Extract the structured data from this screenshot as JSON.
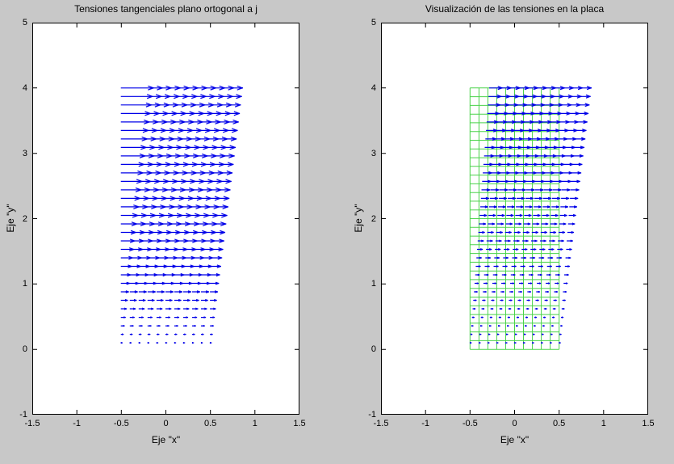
{
  "figure": {
    "background_color": "#C8C8C8",
    "plot_background_color": "#FFFFFF",
    "axis_color": "#000000"
  },
  "chart_data": [
    {
      "type": "quiver",
      "title": "Tensiones tangenciales plano ortogonal a j",
      "xlabel": "Eje \"x\"",
      "ylabel": "Eje \"y\"",
      "xlim": [
        -1.5,
        1.5
      ],
      "ylim": [
        -1,
        5
      ],
      "x_tick_labels": [
        "-1.5",
        "-1",
        "-0.5",
        "0",
        "0.5",
        "1",
        "1.5"
      ],
      "y_tick_labels": [
        "-1",
        "0",
        "1",
        "2",
        "3",
        "4",
        "5"
      ],
      "grid": false,
      "quiver": {
        "color": "#0000E8",
        "x_start": -0.5,
        "x_step": 0.1,
        "cols": 11,
        "y_start": 0.1,
        "y_end": 4.0,
        "rows": 31,
        "dx_per_y": 0.09,
        "dy": 0,
        "x_shift_per_y": 0,
        "direction": "+x",
        "magnitude_rule": "arrow length proportional to y"
      },
      "mesh": null
    },
    {
      "type": "quiver",
      "title": "Visualización de las tensiones en la placa",
      "xlabel": "Eje \"x\"",
      "ylabel": "Eje \"y\"",
      "xlim": [
        -1.5,
        1.5
      ],
      "ylim": [
        -1,
        5
      ],
      "x_tick_labels": [
        "-1.5",
        "-1",
        "-0.5",
        "0",
        "0.5",
        "1",
        "1.5"
      ],
      "y_tick_labels": [
        "-1",
        "0",
        "1",
        "2",
        "3",
        "4",
        "5"
      ],
      "grid": false,
      "quiver": {
        "color": "#0000E8",
        "x_start": -0.5,
        "x_step": 0.1,
        "cols": 11,
        "y_start": 0.1,
        "y_end": 4.0,
        "rows": 31,
        "dx_per_y": 0.035,
        "dy": 0,
        "x_shift_per_y": 0.055,
        "direction": "+x",
        "magnitude_rule": "arrow length proportional to y, arrow origins shifted right proportionally to y"
      },
      "mesh": {
        "color": "#4AD34A",
        "x_min": -0.5,
        "x_max": 0.5,
        "x_lines": 11,
        "y_min": 0,
        "y_max": 4,
        "y_lines": 31
      }
    }
  ]
}
